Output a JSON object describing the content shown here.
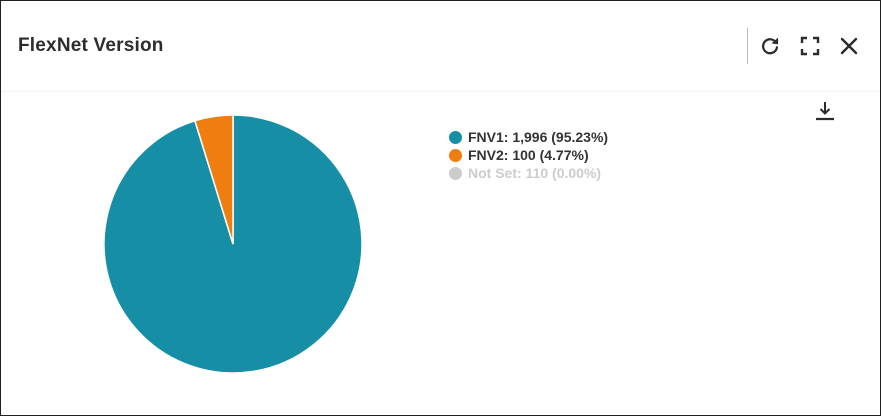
{
  "header": {
    "title": "FlexNet Version",
    "icons": {
      "refresh": "refresh-icon",
      "expand": "fullscreen-icon",
      "close": "close-icon",
      "download": "download-icon"
    }
  },
  "colors": {
    "fnv1": "#168ea5",
    "fnv2": "#ef7d10",
    "not_set": "#cccccc"
  },
  "chart_data": {
    "type": "pie",
    "legend_position": "right",
    "series": [
      {
        "name": "FNV1",
        "value": 1996,
        "percent": 95.23,
        "label": "FNV1: 1,996 (95.23%)",
        "visible": true
      },
      {
        "name": "FNV2",
        "value": 100,
        "percent": 4.77,
        "label": "FNV2: 100 (4.77%)",
        "visible": true
      },
      {
        "name": "Not Set",
        "value": 110,
        "percent": 0.0,
        "label": "Not Set: 110 (0.00%)",
        "visible": false
      }
    ]
  }
}
